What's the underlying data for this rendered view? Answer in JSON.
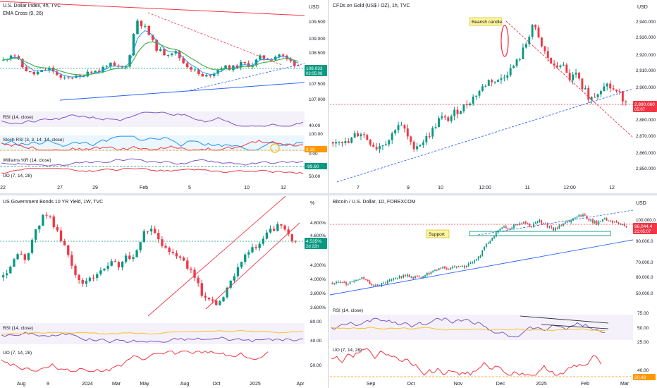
{
  "colors": {
    "up": "#089981",
    "down": "#f23645",
    "bg": "#ffffff",
    "grid": "#f0f3fa",
    "axis_text": "#131722",
    "ema_fast": "#2196f3",
    "ema_slow": "#4caf50",
    "rsi": "#7e57c2",
    "ma_yellow": "#fbc02d",
    "uo": "#f23645",
    "trend_blue": "#2962ff"
  },
  "panels": [
    {
      "id": "p1",
      "title": "U.S. Dollar Index, 4h, TVC",
      "indicator_label": "EMA Cross (9, 26)",
      "currency": "USD",
      "y_ticks": [
        "109.500",
        "109.000",
        "108.500",
        "107.500",
        "107.000"
      ],
      "price_badge": {
        "value": "108.033",
        "time": "03:05:08",
        "color": "#089981"
      },
      "x_ticks": [
        "22",
        "27",
        "29",
        "Feb",
        "5",
        "10",
        "12"
      ],
      "subpanes": [
        {
          "label": "RSI (14, close)",
          "ticks": [
            "40.00"
          ]
        },
        {
          "label": "Stoch RSI (3, 3, 14, 14, close)",
          "ticks": [
            "100.00",
            "0.00"
          ],
          "badge": "3.18"
        },
        {
          "label": "Williams %R (14, close)",
          "ticks": [],
          "badge": "-99.60"
        },
        {
          "label": "UO (7, 14, 28)",
          "ticks": [
            "50.00"
          ]
        }
      ]
    },
    {
      "id": "p2",
      "title": "CFDs on Gold (US$ / OZ), 1h, TVC",
      "currency": "USD",
      "y_ticks": [
        "2,940.000",
        "2,930.000",
        "2,920.000",
        "2,910.000",
        "2,900.000",
        "2,880.000",
        "2,870.000",
        "2,860.000",
        "2,850.000"
      ],
      "price_badge": {
        "value": "2,890.060",
        "time": "05:07",
        "color": "#f23645"
      },
      "x_ticks": [
        "7",
        "9",
        "10",
        "12:00",
        "11",
        "12:00",
        "12"
      ],
      "annotation": "Bearish candle"
    },
    {
      "id": "p3",
      "title": "US Government Bonds 10 YR Yield, 1W, TVC",
      "currency": "%",
      "y_ticks": [
        "4.800%",
        "4.600%",
        "4.200%",
        "4.000%",
        "3.800%",
        "3.600%"
      ],
      "price_badge": {
        "value": "4.535%",
        "time": "2d 22h",
        "color": "#089981"
      },
      "x_ticks": [
        "Aug",
        "9",
        "2024",
        "Mar",
        "May",
        "Aug",
        "Oct",
        "2025",
        "Apr"
      ],
      "subpanes": [
        {
          "label": "RSI (14, close)",
          "ticks": [
            "80.00",
            "40.00"
          ]
        },
        {
          "label": "UO (7, 14, 28)",
          "ticks": [
            "50.00"
          ]
        }
      ]
    },
    {
      "id": "p4",
      "title": "Bitcoin / U.S. Dollar, 1D, FOREXCOM",
      "currency": "USD",
      "y_ticks": [
        "100,000.0",
        "90,000.0",
        "70,000.0",
        "60,000.0",
        "50,000.0"
      ],
      "price_badge": {
        "value": "96,044.4",
        "time": "21:05:07",
        "color": "#f23645"
      },
      "x_ticks": [
        "Sep",
        "Oct",
        "Nov",
        "Dec",
        "2025",
        "Feb",
        "Mar"
      ],
      "annotation": "Support",
      "subpanes": [
        {
          "label": "RSI (14, close)",
          "ticks": [
            "75.00",
            "50.00",
            "25.00"
          ]
        },
        {
          "label": "UO (7, 14, 28)",
          "ticks": [
            "40.00"
          ],
          "badge": "20.48"
        }
      ]
    }
  ],
  "chart_data": [
    {
      "type": "candlestick",
      "title": "U.S. Dollar Index, 4h, TVC",
      "ylim": [
        106.9,
        109.8
      ],
      "x_categories": [
        "22",
        "27",
        "29",
        "Feb",
        "5",
        "10",
        "12"
      ],
      "close_path": [
        108.2,
        108.45,
        108.0,
        107.75,
        107.85,
        107.95,
        107.6,
        107.7,
        107.65,
        107.9,
        107.85,
        108.1,
        107.95,
        108.0,
        109.5,
        109.2,
        108.6,
        108.4,
        108.5,
        108.1,
        107.9,
        107.65,
        107.8,
        108.0,
        107.95,
        108.1,
        108.05,
        108.3,
        108.25,
        108.4,
        108.2,
        108.033
      ],
      "last": 108.033
    },
    {
      "type": "candlestick",
      "title": "CFDs on Gold (US$ / OZ), 1h, TVC",
      "ylim": [
        2846,
        2948
      ],
      "x_categories": [
        "7",
        "9",
        "10",
        "12:00",
        "11",
        "12:00",
        "12"
      ],
      "close_path": [
        2864,
        2866,
        2862,
        2868,
        2870,
        2865,
        2860,
        2863,
        2866,
        2876,
        2872,
        2861,
        2862,
        2866,
        2872,
        2880,
        2878,
        2883,
        2886,
        2890,
        2895,
        2900,
        2905,
        2903,
        2908,
        2912,
        2918,
        2928,
        2942,
        2928,
        2920,
        2912,
        2916,
        2905,
        2908,
        2900,
        2892,
        2896,
        2903,
        2899,
        2896,
        2890.06
      ],
      "last": 2890.06
    },
    {
      "type": "candlestick",
      "title": "US Government Bonds 10 YR Yield, 1W, TVC",
      "ylim": [
        3.55,
        4.95
      ],
      "x_categories": [
        "Aug",
        "9",
        "2024",
        "Mar",
        "May",
        "Aug",
        "Oct",
        "2025",
        "Apr"
      ],
      "close_path": [
        4.05,
        4.2,
        4.35,
        4.3,
        4.6,
        4.85,
        4.9,
        4.65,
        4.45,
        4.2,
        3.95,
        4.0,
        4.1,
        4.15,
        4.25,
        4.2,
        4.35,
        4.3,
        4.6,
        4.7,
        4.62,
        4.45,
        4.4,
        4.3,
        4.2,
        4.0,
        3.8,
        3.75,
        3.7,
        3.85,
        4.1,
        4.3,
        4.4,
        4.45,
        4.6,
        4.7,
        4.75,
        4.6,
        4.535
      ],
      "last": 4.535
    },
    {
      "type": "candlestick",
      "title": "Bitcoin / U.S. Dollar, 1D, FOREXCOM",
      "ylim": [
        45000,
        108000
      ],
      "x_categories": [
        "Sep",
        "Oct",
        "Nov",
        "Dec",
        "2025",
        "Feb",
        "Mar"
      ],
      "close_path": [
        58000,
        59000,
        57000,
        60000,
        61000,
        58000,
        56000,
        57500,
        60000,
        62000,
        63000,
        61500,
        62000,
        64000,
        66000,
        68000,
        67000,
        70000,
        69000,
        72000,
        76000,
        84000,
        90000,
        96000,
        95000,
        97000,
        98500,
        96000,
        100000,
        97000,
        94000,
        96500,
        99000,
        102000,
        104000,
        100500,
        98000,
        101000,
        100000,
        98000,
        96044.4
      ],
      "last": 96044.4
    }
  ]
}
